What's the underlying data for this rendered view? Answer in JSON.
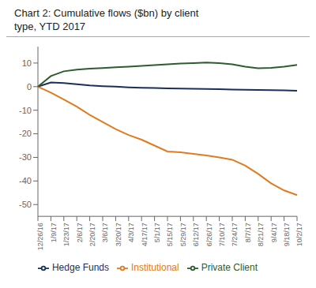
{
  "chart_data": {
    "type": "line",
    "title": "Chart 2: Cumulative flows ($bn) by client\ntype, YTD 2017",
    "categories": [
      "12/26/16",
      "1/9/17",
      "1/23/17",
      "2/6/17",
      "2/20/17",
      "3/6/17",
      "3/20/17",
      "4/3/17",
      "4/17/17",
      "5/1/17",
      "5/15/17",
      "5/29/17",
      "6/12/17",
      "6/26/17",
      "7/10/17",
      "7/24/17",
      "8/7/17",
      "8/21/17",
      "9/4/17",
      "9/18/17",
      "10/2/17"
    ],
    "series": [
      {
        "name": "Hedge Funds",
        "color": "#1a2f5e",
        "values": [
          0.0,
          1.8,
          1.5,
          1.0,
          0.5,
          0.2,
          0.0,
          -0.3,
          -0.5,
          -0.6,
          -0.7,
          -0.8,
          -0.9,
          -1.0,
          -1.1,
          -1.2,
          -1.3,
          -1.4,
          -1.5,
          -1.6,
          -1.7
        ]
      },
      {
        "name": "Institutional",
        "color": "#e07b20",
        "values": [
          0.0,
          -2.5,
          -5.5,
          -8.5,
          -12.0,
          -15.0,
          -18.0,
          -20.5,
          -22.5,
          -25.0,
          -27.5,
          -27.8,
          -28.5,
          -29.2,
          -30.0,
          -31.0,
          -33.5,
          -37.0,
          -41.0,
          -44.0,
          -46.0
        ]
      },
      {
        "name": "Private Client",
        "color": "#2d5c2e",
        "values": [
          0.0,
          4.5,
          6.5,
          7.2,
          7.6,
          7.9,
          8.2,
          8.5,
          8.8,
          9.1,
          9.5,
          9.8,
          10.0,
          10.2,
          10.0,
          9.5,
          8.5,
          7.8,
          8.0,
          8.5,
          9.2
        ]
      }
    ],
    "ylim": [
      -55,
      17
    ],
    "yticks": [
      -50,
      -40,
      -30,
      -20,
      -10,
      0,
      10
    ],
    "legend": "bottom"
  }
}
